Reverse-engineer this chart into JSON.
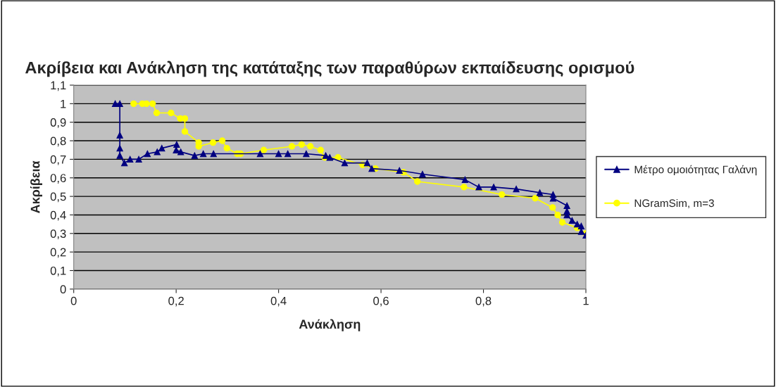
{
  "chart_data": {
    "type": "line",
    "title": "Ακρίβεια και Ανάκληση της κατάταξης των παραθύρων εκπαίδευσης ορισμού",
    "xlabel": "Ανάκληση",
    "ylabel": "Ακρίβεια",
    "xlim": [
      0,
      1
    ],
    "xticks": [
      0,
      {
        "value": 0.2,
        "label": "0,2"
      },
      {
        "value": 0.4,
        "label": "0,4"
      },
      {
        "value": 0.6,
        "label": "0,6"
      },
      {
        "value": 0.8,
        "label": "0,8"
      },
      1
    ],
    "ylim": [
      0,
      1.1
    ],
    "yticks": [
      0,
      {
        "value": 0.1,
        "label": "0,1"
      },
      {
        "value": 0.2,
        "label": "0,2"
      },
      {
        "value": 0.3,
        "label": "0,3"
      },
      {
        "value": 0.4,
        "label": "0,4"
      },
      {
        "value": 0.5,
        "label": "0,5"
      },
      {
        "value": 0.6,
        "label": "0,6"
      },
      {
        "value": 0.7,
        "label": "0,7"
      },
      {
        "value": 0.8,
        "label": "0,8"
      },
      {
        "value": 0.9,
        "label": "0,9"
      },
      1,
      {
        "value": 1.1,
        "label": "1,1"
      }
    ],
    "grid": "y",
    "legend": "right",
    "series": [
      {
        "name": "Μέτρο ομοιότητας Γαλάνη",
        "color": "#000080",
        "marker": "triangle",
        "x": [
          0.081,
          0.09,
          0.09,
          0.09,
          0.09,
          0.099,
          0.11,
          0.127,
          0.144,
          0.163,
          0.172,
          0.201,
          0.2,
          0.209,
          0.236,
          0.253,
          0.273,
          0.364,
          0.4,
          0.418,
          0.454,
          0.492,
          0.5,
          0.529,
          0.573,
          0.582,
          0.636,
          0.681,
          0.764,
          0.791,
          0.82,
          0.864,
          0.91,
          0.936,
          0.936,
          0.963,
          0.963,
          0.963,
          0.973,
          0.983,
          0.991,
          0.991,
          1.0
        ],
        "values": [
          1.0,
          1.0,
          0.83,
          0.76,
          0.72,
          0.68,
          0.7,
          0.7,
          0.73,
          0.74,
          0.76,
          0.78,
          0.75,
          0.74,
          0.72,
          0.73,
          0.73,
          0.73,
          0.73,
          0.73,
          0.73,
          0.72,
          0.71,
          0.68,
          0.68,
          0.65,
          0.64,
          0.62,
          0.59,
          0.55,
          0.55,
          0.54,
          0.52,
          0.51,
          0.49,
          0.45,
          0.42,
          0.4,
          0.37,
          0.35,
          0.34,
          0.31,
          0.29
        ]
      },
      {
        "name": "NGramSim, m=3",
        "color": "#ffff00",
        "marker": "circle",
        "x": [
          0.117,
          0.134,
          0.142,
          0.154,
          0.162,
          0.19,
          0.208,
          0.217,
          0.217,
          0.244,
          0.244,
          0.272,
          0.29,
          0.299,
          0.319,
          0.326,
          0.371,
          0.426,
          0.445,
          0.462,
          0.482,
          0.49,
          0.516,
          0.564,
          0.589,
          0.644,
          0.671,
          0.762,
          0.836,
          0.901,
          0.935,
          0.945,
          0.954,
          0.983,
          1.0
        ],
        "values": [
          1.0,
          1.0,
          1.0,
          1.0,
          0.95,
          0.95,
          0.92,
          0.92,
          0.85,
          0.79,
          0.77,
          0.79,
          0.8,
          0.76,
          0.73,
          0.73,
          0.75,
          0.77,
          0.78,
          0.77,
          0.75,
          0.71,
          0.71,
          0.67,
          0.65,
          0.63,
          0.58,
          0.55,
          0.51,
          0.49,
          0.44,
          0.4,
          0.36,
          0.33,
          0.3
        ]
      }
    ]
  }
}
